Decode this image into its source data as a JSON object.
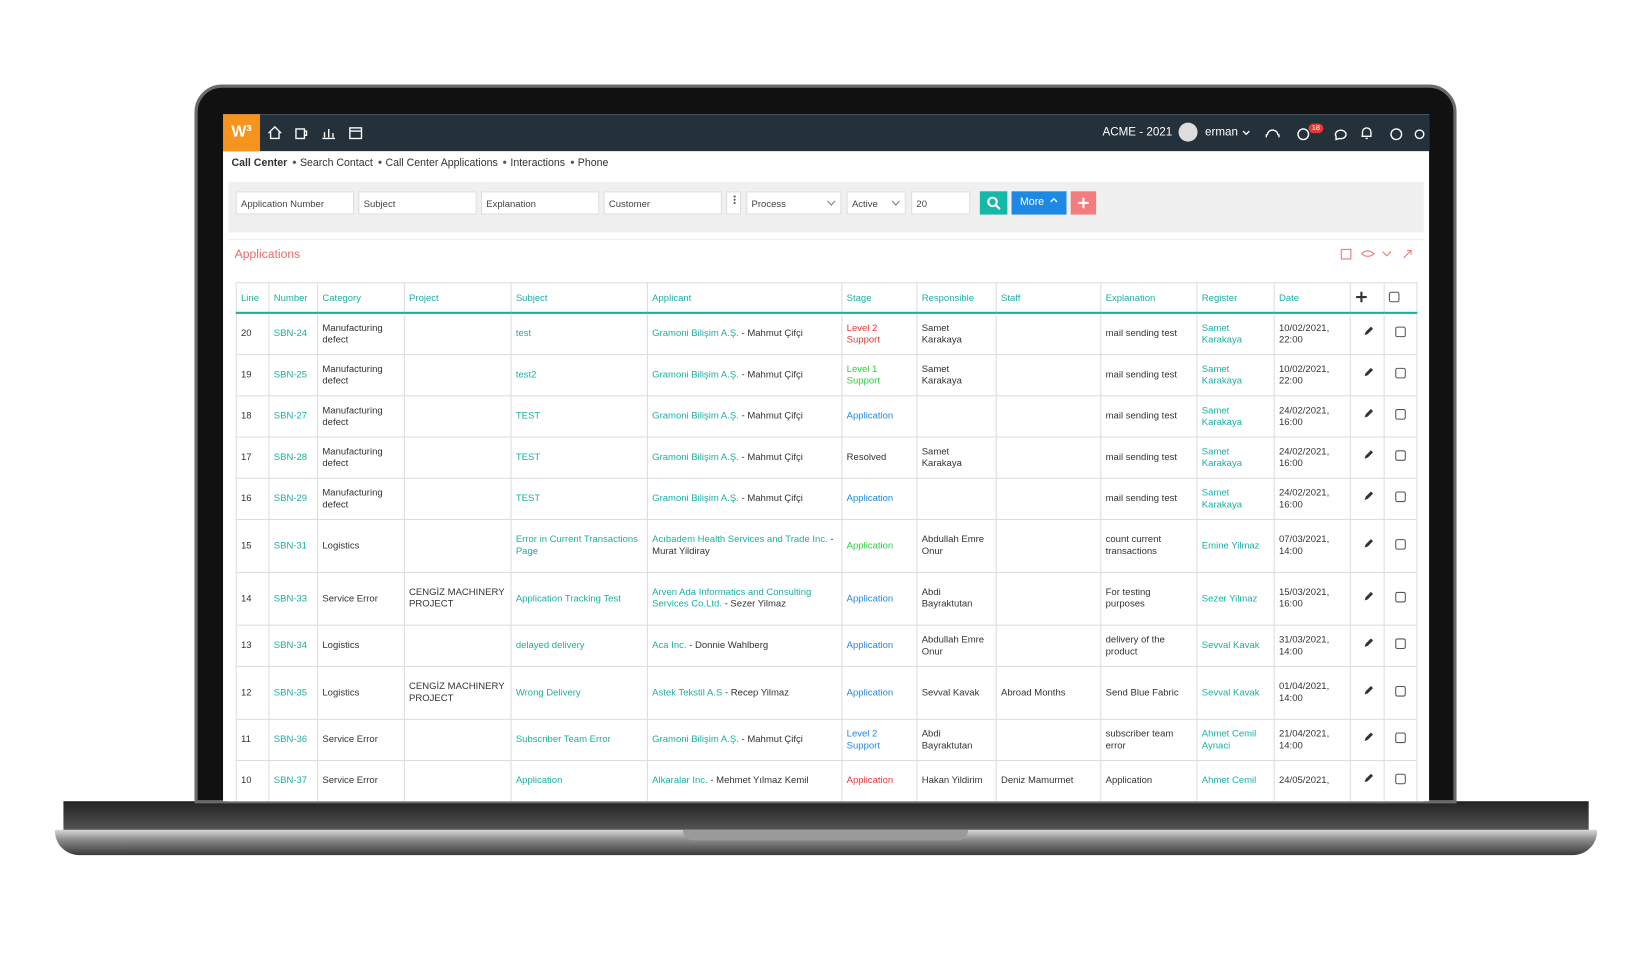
{
  "header": {
    "logo": "W³",
    "company": "ACME - 2021",
    "user": "erman",
    "badge": "18"
  },
  "breadcrumb": [
    "Call Center",
    "Search Contact",
    "Call Center Applications",
    "Interactions",
    "Phone"
  ],
  "filters": {
    "fields": [
      "Application Number",
      "Subject",
      "Explanation",
      "Customer"
    ],
    "selects": [
      "Process",
      "Active"
    ],
    "count": "20",
    "more_button": "More"
  },
  "section": {
    "title": "Applications"
  },
  "table": {
    "columns": [
      "Line",
      "Number",
      "Category",
      "Project",
      "Subject",
      "Applicant",
      "Stage",
      "Responsible",
      "Staff",
      "Explanation",
      "Register",
      "Date"
    ],
    "rows": [
      {
        "line": 20,
        "number": "SBN-24",
        "category": "Manufacturing defect",
        "subject": "test",
        "company": "Gramoni Bilişim A.Ş.",
        "contact": "- Mahmut Çifçi",
        "stage": "Level 2 Support",
        "stage_color": "#e53935",
        "responsible": "Samet Karakaya",
        "explanation": "mail sending test",
        "register": "Samet Karakaya",
        "date": "10/02/2021, 22:00"
      },
      {
        "line": 19,
        "number": "SBN-25",
        "category": "Manufacturing defect",
        "subject": "test2",
        "company": "Gramoni Bilişim A.Ş.",
        "contact": "- Mahmut Çifçi",
        "stage": "Level 1 Support",
        "stage_color": "#2ecc40",
        "responsible": "Samet Karakaya",
        "explanation": "mail sending test",
        "register": "Samet Karakaya",
        "date": "10/02/2021, 22:00"
      },
      {
        "line": 18,
        "number": "SBN-27",
        "category": "Manufacturing defect",
        "subject": "TEST",
        "company": "Gramoni Bilişim A.Ş.",
        "contact": "- Mahmut Çifçi",
        "stage": "Application",
        "stage_color": "#1e88e5",
        "explanation": "mail sending test",
        "register": "Samet Karakaya",
        "date": "24/02/2021, 16:00"
      },
      {
        "line": 17,
        "number": "SBN-28",
        "category": "Manufacturing defect",
        "subject": "TEST",
        "company": "Gramoni Bilişim A.Ş.",
        "contact": "- Mahmut Çifçi",
        "stage": "Resolved",
        "stage_color": "#333333",
        "responsible": "Samet Karakaya",
        "explanation": "mail sending test",
        "register": "Samet Karakaya",
        "date": "24/02/2021, 16:00"
      },
      {
        "line": 16,
        "number": "SBN-29",
        "category": "Manufacturing defect",
        "subject": "TEST",
        "company": "Gramoni Bilişim A.Ş.",
        "contact": "- Mahmut Çifçi",
        "stage": "Application",
        "stage_color": "#1e88e5",
        "explanation": "mail sending test",
        "register": "Samet Karakaya",
        "date": "24/02/2021, 16:00"
      },
      {
        "line": 15,
        "number": "SBN-31",
        "category": "Logistics",
        "subject": "Error in Current Transactions Page",
        "company": "Acıbadem Health Services and Trade Inc.",
        "contact": "- Murat Yildiray",
        "stage": "Application",
        "stage_color": "#2ecc40",
        "responsible": "Abdullah Emre Onur",
        "explanation": "count current transactions",
        "register": "Emine Yilmaz",
        "date": "07/03/2021, 14:00"
      },
      {
        "line": 14,
        "number": "SBN-33",
        "category": "Service Error",
        "project": "CENGİZ MACHINERY PROJECT",
        "subject": "Application Tracking Test",
        "company": "Arven Ada Informatics and Consulting Services Co.Ltd.",
        "contact": "- Sezer Yilmaz",
        "stage": "Application",
        "stage_color": "#1e88e5",
        "responsible": "Abdi Bayraktutan",
        "explanation": "For testing purposes",
        "register": "Sezer Yilmaz",
        "date": "15/03/2021, 16:00"
      },
      {
        "line": 13,
        "number": "SBN-34",
        "category": "Logistics",
        "subject": "delayed delivery",
        "company": "Aca Inc.",
        "contact": "- Donnie Wahlberg",
        "stage": "Application",
        "stage_color": "#1e88e5",
        "responsible": "Abdullah Emre Onur",
        "explanation": "delivery of the product",
        "register": "Sevval Kavak",
        "date": "31/03/2021, 14:00"
      },
      {
        "line": 12,
        "number": "SBN-35",
        "category": "Logistics",
        "project": "CENGİZ MACHINERY PROJECT",
        "subject": "Wrong Delivery",
        "company": "Astek Tekstil A.S",
        "contact": "- Recep Yilmaz",
        "stage": "Application",
        "stage_color": "#1e88e5",
        "responsible": "Sevval Kavak",
        "staff": "Abroad Months",
        "explanation": "Send Blue Fabric",
        "register": "Sevval Kavak",
        "date": "01/04/2021, 14:00"
      },
      {
        "line": 11,
        "number": "SBN-36",
        "category": "Service Error",
        "subject": "Subscriber Team Error",
        "company": "Gramoni Bilişim A.Ş.",
        "contact": "- Mahmut Çifçi",
        "stage": "Level 2 Support",
        "stage_color": "#1e88e5",
        "responsible": "Abdi Bayraktutan",
        "explanation": "subscriber team error",
        "register": "Ahmet Cemil Aynaci",
        "date": "21/04/2021, 14:00"
      },
      {
        "line": 10,
        "number": "SBN-37",
        "category": "Service Error",
        "subject": "Application",
        "company": "Alkaralar Inc.",
        "contact": "- Mehmet Yılmaz Kemil",
        "stage": "Application",
        "stage_color": "#e53935",
        "responsible": "Hakan Yildirim",
        "staff": "Deniz Mamurmet",
        "explanation": "Application",
        "register": "Ahmet Cemil",
        "date": "24/05/2021,"
      }
    ]
  }
}
